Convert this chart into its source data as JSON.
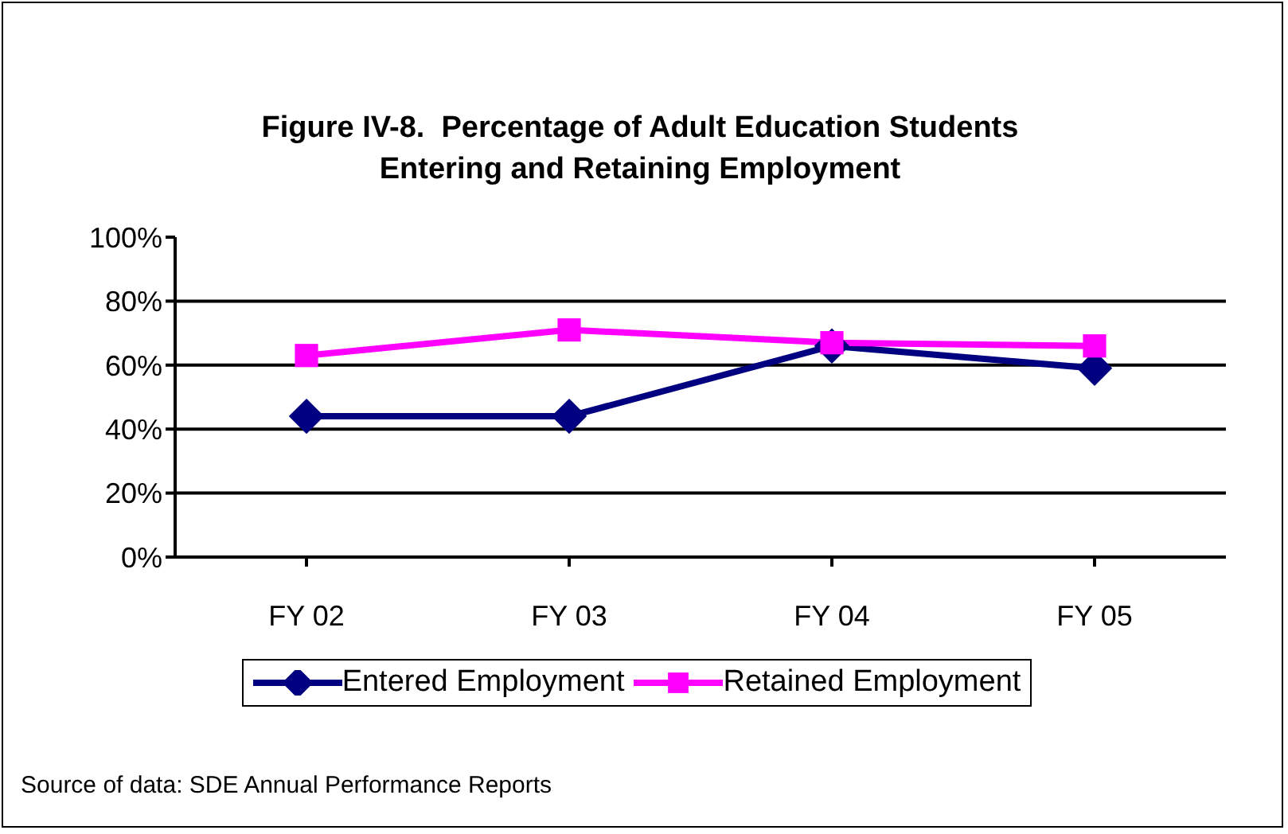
{
  "chart_data": {
    "type": "line",
    "title": "Figure IV-8.  Percentage of Adult Education Students Entering and Retaining Employment",
    "categories": [
      "FY 02",
      "FY 03",
      "FY 04",
      "FY 05"
    ],
    "series": [
      {
        "name": "Entered Employment",
        "color": "#000080",
        "marker": "diamond",
        "values": [
          44,
          44,
          66,
          59
        ]
      },
      {
        "name": "Retained Employment",
        "color": "#ff00ff",
        "marker": "square",
        "values": [
          63,
          71,
          67,
          66
        ]
      }
    ],
    "ylim": [
      0,
      100
    ],
    "yticks": [
      {
        "value": 0,
        "label": "0%"
      },
      {
        "value": 20,
        "label": "20%"
      },
      {
        "value": 40,
        "label": "40%"
      },
      {
        "value": 60,
        "label": "60%"
      },
      {
        "value": 80,
        "label": "80%"
      },
      {
        "value": 100,
        "label": "100%"
      }
    ],
    "grid": "y",
    "legend": "bottom",
    "line_style": "solid",
    "annotations": [
      "Source of data: SDE Annual Performance Reports"
    ]
  }
}
